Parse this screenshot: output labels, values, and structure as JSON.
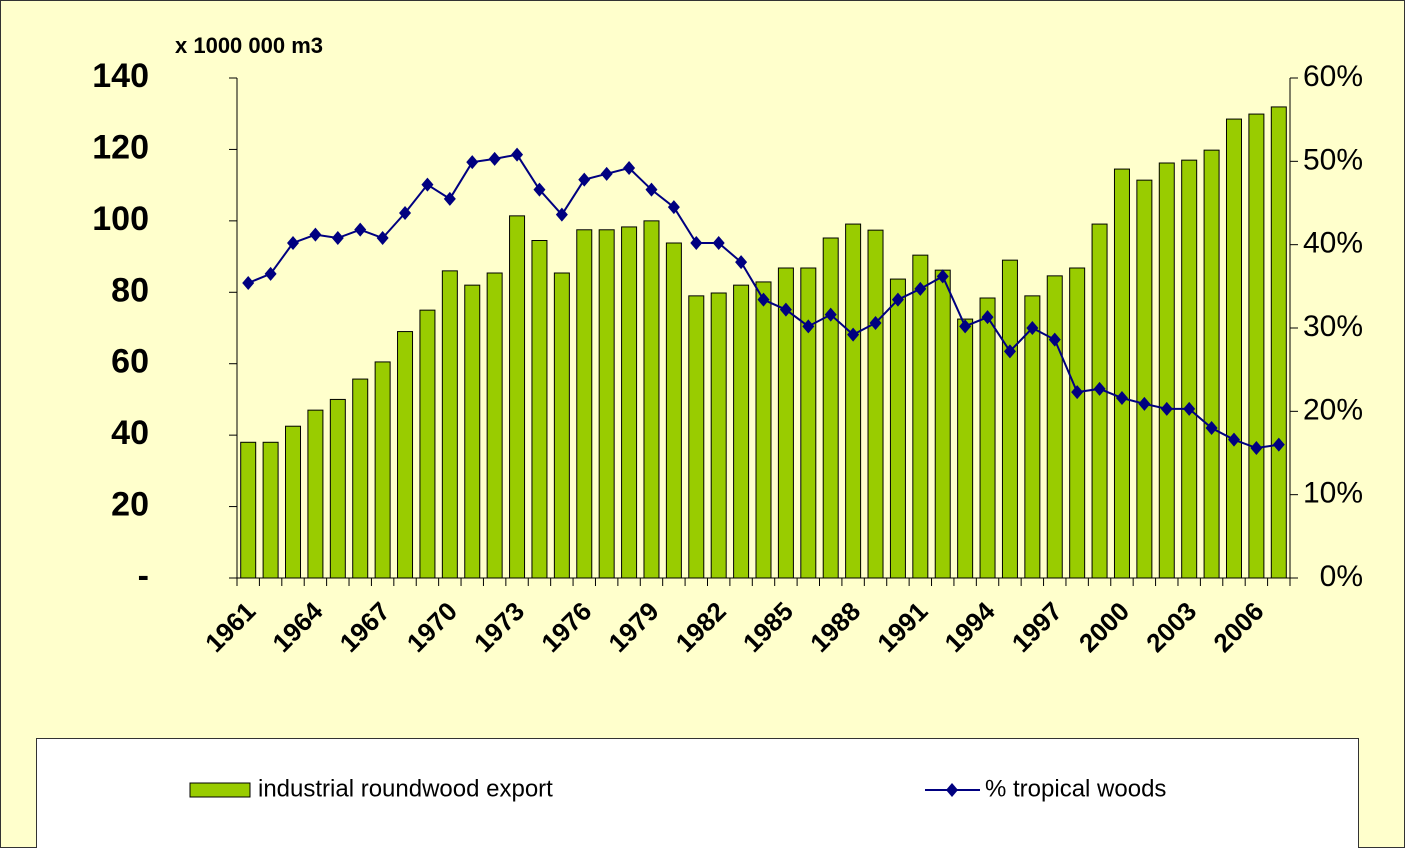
{
  "chart_data": {
    "type": "bar-line",
    "y_label": "x 1000 000 m3",
    "categories": [
      "1961",
      null,
      null,
      "1964",
      null,
      null,
      "1967",
      null,
      null,
      "1970",
      null,
      null,
      "1973",
      null,
      null,
      "1976",
      null,
      null,
      "1979",
      null,
      null,
      "1982",
      null,
      null,
      "1985",
      null,
      null,
      "1988",
      null,
      null,
      "1991",
      null,
      null,
      "1994",
      null,
      null,
      "1997",
      null,
      null,
      "2000",
      null,
      null,
      "2003",
      null,
      null,
      "2006",
      null
    ],
    "series": [
      {
        "name": "industrial roundwood export",
        "type": "bar",
        "color": "#99cc00",
        "axis": "y",
        "values": [
          38,
          38,
          42.5,
          47,
          50,
          55.7,
          60.5,
          69,
          75,
          86,
          82,
          85.4,
          101.4,
          94.5,
          85.4,
          97.5,
          97.5,
          98.3,
          100,
          93.8,
          79,
          79.8,
          82,
          82.9,
          86.8,
          86.8,
          95.2,
          99.1,
          97.4,
          83.7,
          90.4,
          86.2,
          72.5,
          78.4,
          89,
          79,
          84.6,
          86.8,
          99.1,
          114.5,
          111.4,
          116.2,
          117,
          119.8,
          128.5,
          129.9,
          131.9
        ]
      },
      {
        "name": "% tropical woods",
        "type": "line",
        "color": "#000080",
        "axis": "y2",
        "values": [
          35.4,
          36.5,
          40.2,
          41.2,
          40.8,
          41.8,
          40.8,
          43.8,
          47.2,
          45.5,
          49.9,
          50.3,
          50.8,
          46.6,
          43.6,
          47.8,
          48.5,
          49.2,
          46.6,
          44.5,
          40.2,
          40.2,
          37.9,
          33.4,
          32.2,
          30.2,
          31.6,
          29.2,
          30.6,
          33.4,
          34.7,
          36.2,
          30.2,
          31.3,
          27.2,
          30,
          28.6,
          22.3,
          22.7,
          21.6,
          20.9,
          20.3,
          20.3,
          18,
          16.6,
          15.6,
          16
        ]
      }
    ],
    "ylim": [
      0,
      140
    ],
    "yticks": [
      {
        "value": 0,
        "label": "-"
      },
      20,
      40,
      60,
      80,
      100,
      120,
      140
    ],
    "y2lim": [
      0,
      60
    ],
    "y2ticks": [
      {
        "value": 0,
        "label": "0%"
      },
      {
        "value": 10,
        "label": "10%"
      },
      {
        "value": 20,
        "label": "20%"
      },
      {
        "value": 30,
        "label": "30%"
      },
      {
        "value": 40,
        "label": "40%"
      },
      {
        "value": 50,
        "label": "50%"
      },
      {
        "value": 60,
        "label": "60%"
      }
    ],
    "legend": "bottom"
  }
}
